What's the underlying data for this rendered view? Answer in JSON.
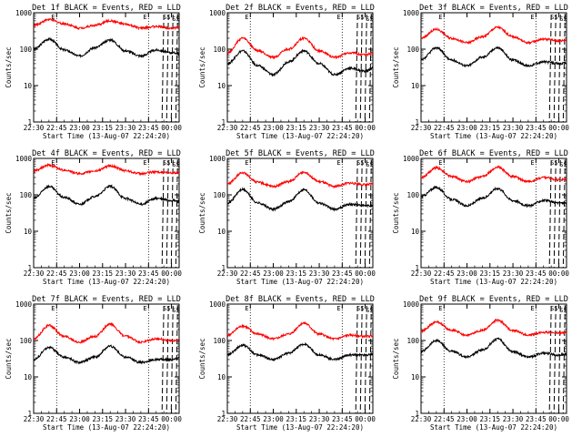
{
  "figure": {
    "x_tick_labels": [
      "22:30",
      "22:45",
      "23:00",
      "23:15",
      "23:30",
      "23:45",
      "00:00"
    ],
    "ylabel": "Counts/sec",
    "xlabel": "Start Time (13-Aug-07 22:24:20)",
    "marker_labels": [
      "E",
      "E",
      "SS",
      "SS"
    ]
  },
  "chart_data": [
    {
      "type": "line",
      "title": "Det 1f BLACK = Events, RED = LLD",
      "xlabel": "Start Time (13-Aug-07 22:24:20)",
      "ylabel": "Counts/sec",
      "ylim": [
        1,
        1000
      ],
      "yscale": "log",
      "x_minutes_from_start": [
        0,
        10,
        20,
        30,
        40,
        50,
        60,
        70,
        80,
        90,
        100
      ],
      "series": [
        {
          "name": "BLACK = Events",
          "color": "#000000",
          "values": [
            100,
            190,
            95,
            65,
            110,
            180,
            90,
            65,
            95,
            80,
            70
          ]
        },
        {
          "name": "RED = LLD",
          "color": "#ff0000",
          "values": [
            450,
            650,
            500,
            380,
            450,
            600,
            480,
            380,
            420,
            380,
            400
          ]
        }
      ]
    },
    {
      "type": "line",
      "title": "Det 2f BLACK = Events, RED = LLD",
      "xlabel": "Start Time (13-Aug-07 22:24:20)",
      "ylabel": "Counts/sec",
      "ylim": [
        1,
        1000
      ],
      "yscale": "log",
      "x_minutes_from_start": [
        0,
        10,
        20,
        30,
        40,
        50,
        60,
        70,
        80,
        90,
        100
      ],
      "series": [
        {
          "name": "BLACK = Events",
          "color": "#000000",
          "values": [
            40,
            90,
            35,
            20,
            45,
            90,
            40,
            20,
            30,
            25,
            40
          ]
        },
        {
          "name": "RED = LLD",
          "color": "#ff0000",
          "values": [
            80,
            200,
            90,
            60,
            100,
            200,
            90,
            60,
            80,
            70,
            90
          ]
        }
      ]
    },
    {
      "type": "line",
      "title": "Det 3f BLACK = Events, RED = LLD",
      "xlabel": "Start Time (13-Aug-07 22:24:20)",
      "ylabel": "Counts/sec",
      "ylim": [
        1,
        1000
      ],
      "yscale": "log",
      "x_minutes_from_start": [
        0,
        10,
        20,
        30,
        40,
        50,
        60,
        70,
        80,
        90,
        100
      ],
      "series": [
        {
          "name": "BLACK = Events",
          "color": "#000000",
          "values": [
            50,
            110,
            50,
            35,
            60,
            110,
            50,
            35,
            45,
            40,
            45
          ]
        },
        {
          "name": "RED = LLD",
          "color": "#ff0000",
          "values": [
            200,
            350,
            200,
            150,
            220,
            400,
            220,
            150,
            190,
            170,
            190
          ]
        }
      ]
    },
    {
      "type": "line",
      "title": "Det 4f BLACK = Events, RED = LLD",
      "xlabel": "Start Time (13-Aug-07 22:24:20)",
      "ylabel": "Counts/sec",
      "ylim": [
        1,
        1000
      ],
      "yscale": "log",
      "x_minutes_from_start": [
        0,
        10,
        20,
        30,
        40,
        50,
        60,
        70,
        80,
        90,
        100
      ],
      "series": [
        {
          "name": "BLACK = Events",
          "color": "#000000",
          "values": [
            80,
            170,
            85,
            55,
            90,
            170,
            80,
            55,
            80,
            70,
            60
          ]
        },
        {
          "name": "RED = LLD",
          "color": "#ff0000",
          "values": [
            450,
            650,
            480,
            380,
            450,
            620,
            460,
            380,
            430,
            400,
            420
          ]
        }
      ]
    },
    {
      "type": "line",
      "title": "Det 5f BLACK = Events, RED = LLD",
      "xlabel": "Start Time (13-Aug-07 22:24:20)",
      "ylabel": "Counts/sec",
      "ylim": [
        1,
        1000
      ],
      "yscale": "log",
      "x_minutes_from_start": [
        0,
        10,
        20,
        30,
        40,
        50,
        60,
        70,
        80,
        90,
        100
      ],
      "series": [
        {
          "name": "BLACK = Events",
          "color": "#000000",
          "values": [
            60,
            140,
            60,
            40,
            65,
            140,
            60,
            40,
            55,
            50,
            50
          ]
        },
        {
          "name": "RED = LLD",
          "color": "#ff0000",
          "values": [
            200,
            400,
            220,
            170,
            230,
            420,
            230,
            170,
            210,
            190,
            220
          ]
        }
      ]
    },
    {
      "type": "line",
      "title": "Det 6f BLACK = Events, RED = LLD",
      "xlabel": "Start Time (13-Aug-07 22:24:20)",
      "ylabel": "Counts/sec",
      "ylim": [
        1,
        1000
      ],
      "yscale": "log",
      "x_minutes_from_start": [
        0,
        10,
        20,
        30,
        40,
        50,
        60,
        70,
        80,
        90,
        100
      ],
      "series": [
        {
          "name": "BLACK = Events",
          "color": "#000000",
          "values": [
            90,
            160,
            75,
            50,
            80,
            150,
            70,
            50,
            70,
            60,
            60
          ]
        },
        {
          "name": "RED = LLD",
          "color": "#ff0000",
          "values": [
            300,
            550,
            320,
            230,
            320,
            580,
            320,
            230,
            300,
            260,
            280
          ]
        }
      ]
    },
    {
      "type": "line",
      "title": "Det 7f BLACK = Events, RED = LLD",
      "xlabel": "Start Time (13-Aug-07 22:24:20)",
      "ylabel": "Counts/sec",
      "ylim": [
        1,
        1000
      ],
      "yscale": "log",
      "x_minutes_from_start": [
        0,
        10,
        20,
        30,
        40,
        50,
        60,
        70,
        80,
        90,
        100
      ],
      "series": [
        {
          "name": "BLACK = Events",
          "color": "#000000",
          "values": [
            30,
            65,
            35,
            25,
            35,
            70,
            35,
            25,
            30,
            30,
            40
          ]
        },
        {
          "name": "RED = LLD",
          "color": "#ff0000",
          "values": [
            110,
            260,
            130,
            90,
            130,
            280,
            130,
            90,
            110,
            100,
            110
          ]
        }
      ]
    },
    {
      "type": "line",
      "title": "Det 8f BLACK = Events, RED = LLD",
      "xlabel": "Start Time (13-Aug-07 22:24:20)",
      "ylabel": "Counts/sec",
      "ylim": [
        1,
        1000
      ],
      "yscale": "log",
      "x_minutes_from_start": [
        0,
        10,
        20,
        30,
        40,
        50,
        60,
        70,
        80,
        90,
        100
      ],
      "series": [
        {
          "name": "BLACK = Events",
          "color": "#000000",
          "values": [
            40,
            75,
            40,
            30,
            45,
            80,
            40,
            30,
            40,
            40,
            45
          ]
        },
        {
          "name": "RED = LLD",
          "color": "#ff0000",
          "values": [
            140,
            250,
            150,
            110,
            150,
            300,
            150,
            110,
            140,
            130,
            140
          ]
        }
      ]
    },
    {
      "type": "line",
      "title": "Det 9f BLACK = Events, RED = LLD",
      "xlabel": "Start Time (13-Aug-07 22:24:20)",
      "ylabel": "Counts/sec",
      "ylim": [
        1,
        1000
      ],
      "yscale": "log",
      "x_minutes_from_start": [
        0,
        10,
        20,
        30,
        40,
        50,
        60,
        70,
        80,
        90,
        100
      ],
      "series": [
        {
          "name": "BLACK = Events",
          "color": "#000000",
          "values": [
            50,
            100,
            50,
            35,
            55,
            110,
            50,
            35,
            45,
            40,
            45
          ]
        },
        {
          "name": "RED = LLD",
          "color": "#ff0000",
          "values": [
            180,
            320,
            190,
            140,
            190,
            360,
            190,
            140,
            170,
            160,
            170
          ]
        }
      ]
    }
  ]
}
